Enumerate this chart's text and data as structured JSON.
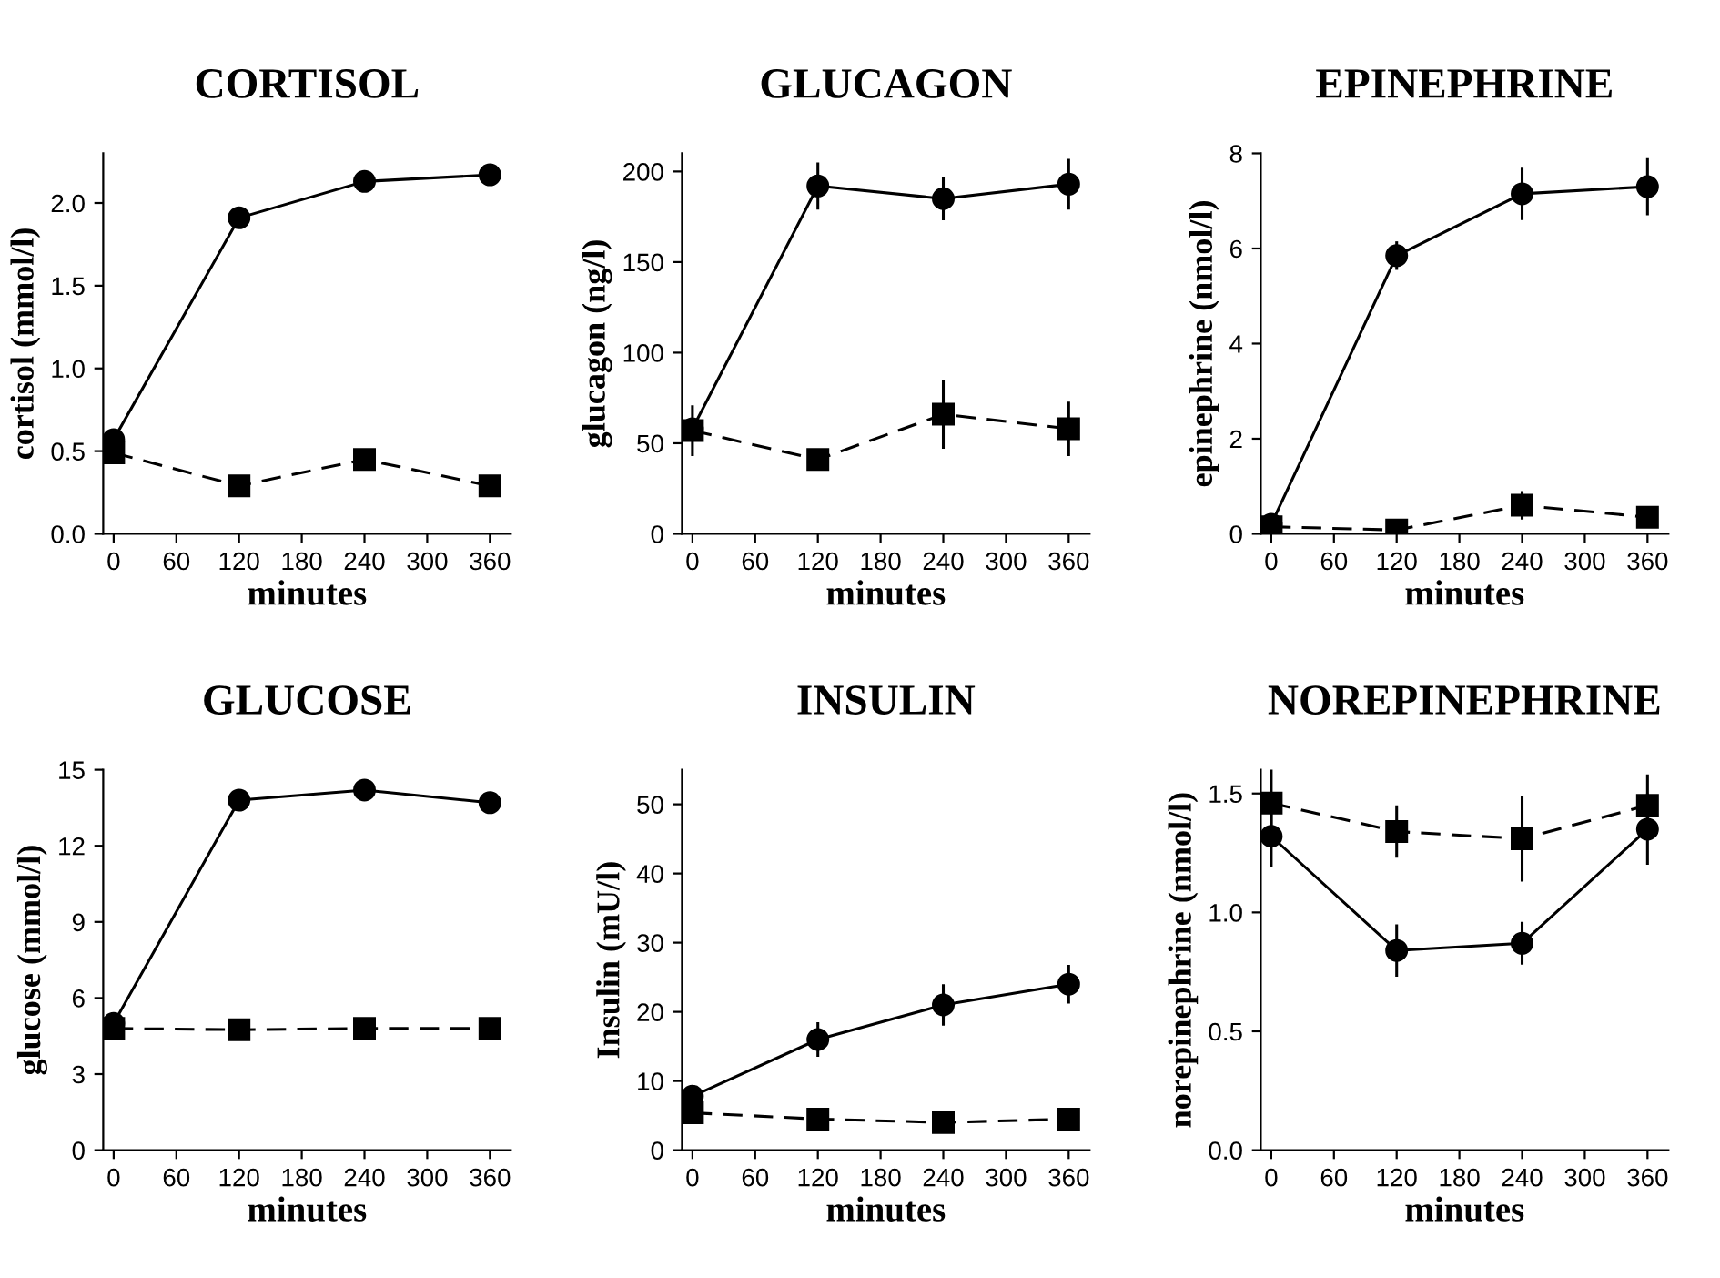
{
  "chart_data": [
    {
      "type": "line",
      "title": "CORTISOL",
      "xlabel": "minutes",
      "ylabel": "cortisol (mmol/l)",
      "x": [
        0,
        120,
        240,
        360
      ],
      "xlim": [
        -10,
        380
      ],
      "xticks": [
        0,
        60,
        120,
        180,
        240,
        300,
        360
      ],
      "ylim": [
        0,
        2.3
      ],
      "yticks": [
        {
          "value": 0,
          "label": "0.0"
        },
        0.5,
        {
          "value": 1,
          "label": "1.0"
        },
        1.5,
        {
          "value": 2,
          "label": "2.0"
        }
      ],
      "grid": false,
      "series": [
        {
          "color": "#000000",
          "marker": "circle",
          "line_style": "solid",
          "values": [
            0.57,
            1.91,
            2.13,
            2.17
          ],
          "errors": [
            null,
            null,
            null,
            0.05
          ]
        },
        {
          "color": "#000000",
          "marker": "square",
          "line_style": "dashed",
          "values": [
            0.49,
            0.29,
            0.45,
            0.29
          ],
          "errors": [
            null,
            null,
            null,
            null
          ]
        }
      ]
    },
    {
      "type": "line",
      "title": "GLUCAGON",
      "xlabel": "minutes",
      "ylabel": "glucagon (ng/l)",
      "x": [
        0,
        120,
        240,
        360
      ],
      "xlim": [
        -10,
        380
      ],
      "xticks": [
        0,
        60,
        120,
        180,
        240,
        300,
        360
      ],
      "ylim": [
        0,
        210
      ],
      "yticks": [
        0,
        50,
        100,
        150,
        200
      ],
      "grid": false,
      "series": [
        {
          "color": "#000000",
          "marker": "circle",
          "line_style": "solid",
          "values": [
            58,
            192,
            185,
            193
          ],
          "errors": [
            null,
            13,
            12,
            14
          ]
        },
        {
          "color": "#000000",
          "marker": "square",
          "line_style": "dashed",
          "values": [
            57,
            41,
            66,
            58
          ],
          "errors": [
            14,
            null,
            19,
            15
          ]
        }
      ]
    },
    {
      "type": "line",
      "title": "EPINEPHRINE",
      "xlabel": "minutes",
      "ylabel": "epinephrine (nmol/l)",
      "x": [
        0,
        120,
        240,
        360
      ],
      "xlim": [
        -10,
        380
      ],
      "xticks": [
        0,
        60,
        120,
        180,
        240,
        300,
        360
      ],
      "ylim": [
        0,
        8
      ],
      "yticks": [
        0,
        2,
        4,
        6,
        8
      ],
      "grid": false,
      "series": [
        {
          "color": "#000000",
          "marker": "circle",
          "line_style": "solid",
          "values": [
            0.2,
            5.85,
            7.15,
            7.3
          ],
          "errors": [
            null,
            0.3,
            0.55,
            0.6
          ]
        },
        {
          "color": "#000000",
          "marker": "square",
          "line_style": "dashed",
          "values": [
            0.15,
            0.08,
            0.6,
            0.35
          ],
          "errors": [
            null,
            null,
            0.3,
            null
          ]
        }
      ]
    },
    {
      "type": "line",
      "title": "GLUCOSE",
      "xlabel": "minutes",
      "ylabel": "glucose (mmol/l)",
      "x": [
        0,
        120,
        240,
        360
      ],
      "xlim": [
        -10,
        380
      ],
      "xticks": [
        0,
        60,
        120,
        180,
        240,
        300,
        360
      ],
      "ylim": [
        0,
        15
      ],
      "yticks": [
        0,
        3,
        6,
        9,
        12,
        15
      ],
      "grid": false,
      "series": [
        {
          "color": "#000000",
          "marker": "circle",
          "line_style": "solid",
          "values": [
            5.0,
            13.8,
            14.2,
            13.7
          ],
          "errors": [
            null,
            null,
            0.4,
            0.4
          ]
        },
        {
          "color": "#000000",
          "marker": "square",
          "line_style": "dashed",
          "values": [
            4.8,
            4.75,
            4.8,
            4.8
          ],
          "errors": [
            null,
            null,
            null,
            null
          ]
        }
      ]
    },
    {
      "type": "line",
      "title": "INSULIN",
      "xlabel": "minutes",
      "ylabel": "Insulin (mU/l)",
      "x": [
        0,
        120,
        240,
        360
      ],
      "xlim": [
        -10,
        380
      ],
      "xticks": [
        0,
        60,
        120,
        180,
        240,
        300,
        360
      ],
      "ylim": [
        0,
        55
      ],
      "yticks": [
        0,
        10,
        20,
        30,
        40,
        50
      ],
      "grid": false,
      "series": [
        {
          "color": "#000000",
          "marker": "circle",
          "line_style": "solid",
          "values": [
            7.8,
            16,
            21,
            24
          ],
          "errors": [
            1,
            2.5,
            3,
            2.8
          ]
        },
        {
          "color": "#000000",
          "marker": "square",
          "line_style": "dashed",
          "values": [
            5.4,
            4.5,
            4.0,
            4.5
          ],
          "errors": [
            null,
            null,
            null,
            null
          ]
        }
      ]
    },
    {
      "type": "line",
      "title": "NOREPINEPHRINE",
      "xlabel": "minutes",
      "ylabel": "norepinephrine (nmol/l)",
      "x": [
        0,
        120,
        240,
        360
      ],
      "xlim": [
        -10,
        380
      ],
      "xticks": [
        0,
        60,
        120,
        180,
        240,
        300,
        360
      ],
      "ylim": [
        0,
        1.6
      ],
      "yticks": [
        {
          "value": 0,
          "label": "0.0"
        },
        0.5,
        {
          "value": 1,
          "label": "1.0"
        },
        1.5
      ],
      "grid": false,
      "series": [
        {
          "color": "#000000",
          "marker": "square",
          "line_style": "dashed",
          "values": [
            1.46,
            1.34,
            1.31,
            1.45
          ],
          "errors": [
            0.15,
            0.11,
            0.18,
            0.13
          ]
        },
        {
          "color": "#000000",
          "marker": "circle",
          "line_style": "solid",
          "values": [
            1.32,
            0.84,
            0.87,
            1.35
          ],
          "errors": [
            0.13,
            0.11,
            0.09,
            0.15
          ]
        }
      ]
    }
  ]
}
